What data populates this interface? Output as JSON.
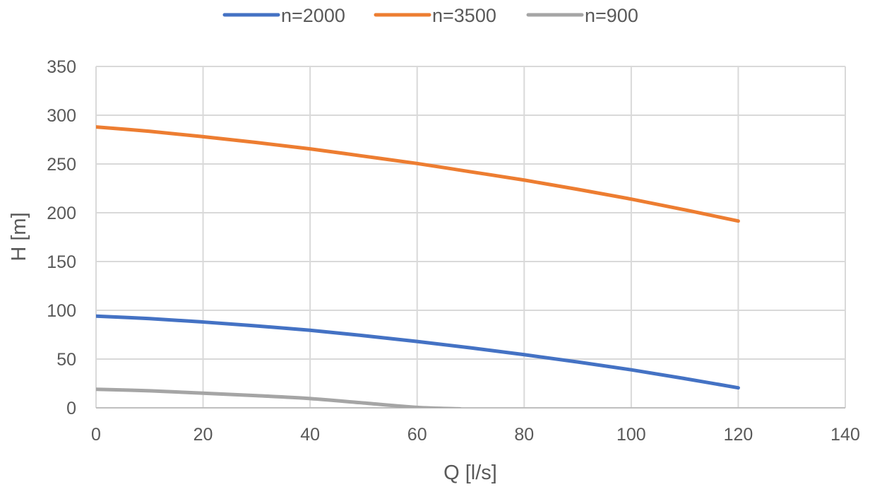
{
  "chart_data": {
    "type": "line",
    "title": "",
    "xlabel": "Q [l/s]",
    "ylabel": "H [m]",
    "xlim": [
      0,
      140
    ],
    "ylim": [
      0,
      350
    ],
    "xticks": [
      0,
      20,
      40,
      60,
      80,
      100,
      120,
      140
    ],
    "yticks": [
      0,
      50,
      100,
      150,
      200,
      250,
      300,
      350
    ],
    "xtick_labels": [
      "0",
      "20",
      "40",
      "60",
      "80",
      "100",
      "120",
      "140"
    ],
    "ytick_labels": [
      "0",
      "50",
      "100",
      "150",
      "200",
      "250",
      "300",
      "350"
    ],
    "grid": true,
    "legend_position": "top",
    "series": [
      {
        "name": "n=2000",
        "color": "#4472C4",
        "x": [
          0,
          10,
          20,
          30,
          40,
          50,
          60,
          70,
          80,
          90,
          100,
          110,
          120
        ],
        "y": [
          94,
          91.5,
          88,
          84,
          79.5,
          74,
          68,
          61.5,
          54.5,
          47,
          39,
          30,
          20.5
        ]
      },
      {
        "name": "n=3500",
        "color": "#ED7D31",
        "x": [
          0,
          10,
          20,
          30,
          40,
          50,
          60,
          70,
          80,
          90,
          100,
          110,
          120
        ],
        "y": [
          288,
          283.5,
          278,
          272,
          265.5,
          258,
          250.5,
          242,
          233.5,
          224,
          214,
          203,
          191.5
        ]
      },
      {
        "name": "n=900",
        "color": "#A5A5A5",
        "x": [
          0,
          10,
          20,
          30,
          40,
          50,
          60,
          68
        ],
        "y": [
          19,
          17.5,
          15,
          12.5,
          9.5,
          5,
          0.5,
          -1
        ]
      }
    ]
  }
}
